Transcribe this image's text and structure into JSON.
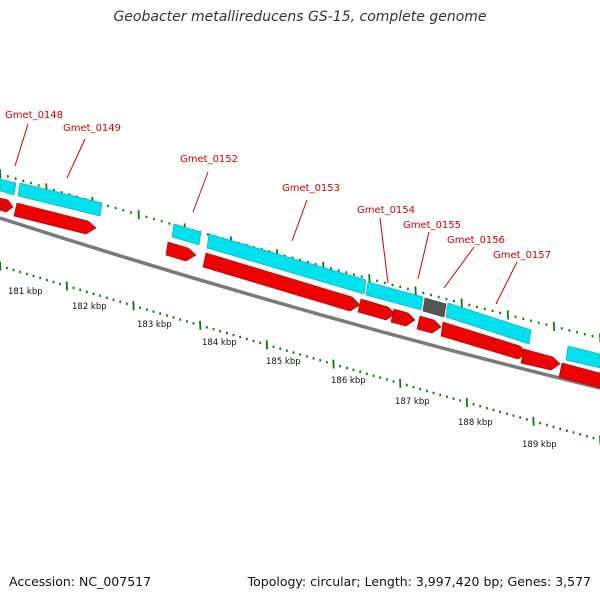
{
  "title": "Geobacter metallireducens GS-15, complete genome",
  "footer": {
    "accession": "Accession: NC_007517",
    "summary": "Topology: circular; Length: 3,997,420 bp; Genes: 3,577"
  },
  "colors": {
    "cds_forward": "#00e0ee",
    "cds_reverse": "#ee0000",
    "other_feature": "#555555",
    "backbone": "#808080",
    "tick": "#0b7a0b",
    "label": "#cc0000"
  },
  "gene_labels": [
    "Gmet_0148",
    "Gmet_0149",
    "Gmet_0152",
    "Gmet_0153",
    "Gmet_0154",
    "Gmet_0155",
    "Gmet_0156",
    "Gmet_0157"
  ],
  "kbp_labels": [
    "181 kbp",
    "182 kbp",
    "183 kbp",
    "184 kbp",
    "185 kbp",
    "186 kbp",
    "187 kbp",
    "188 kbp",
    "189 kbp"
  ]
}
